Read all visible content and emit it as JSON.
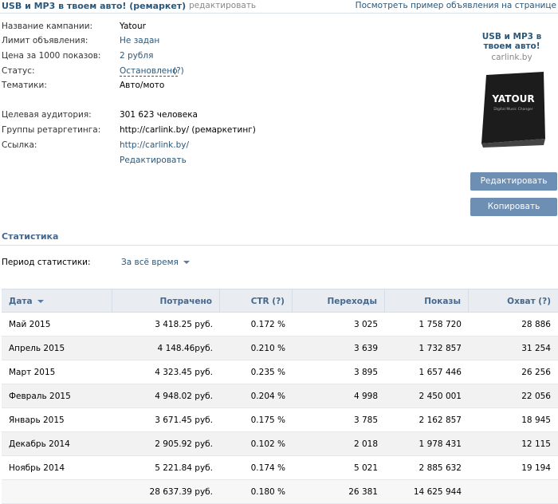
{
  "header": {
    "title": "USB и MP3 в твоем авто! (ремаркет)",
    "edit_link": "редактировать",
    "preview_link": "Посмотреть пример объявления на странице"
  },
  "info": {
    "rows": [
      {
        "label": "Название кампании:",
        "value": "Yatour"
      },
      {
        "label": "Лимит объявления:",
        "value": "Не задан"
      },
      {
        "label": "Цена за 1000 показов:",
        "value": "2 рубля"
      },
      {
        "label": "Статус:",
        "value": "Остановлено",
        "help": "(?)"
      },
      {
        "label": "Тематики:",
        "value": "Авто/мото"
      },
      {
        "label": "Целевая аудитория:",
        "value": "301 623 человека"
      },
      {
        "label": "Группы ретаргетинга:",
        "value": "http://carlink.by/ (ремаркетинг)"
      },
      {
        "label": "Ссылка:",
        "value": "http://carlink.by/"
      }
    ],
    "edit_link": "Редактировать"
  },
  "ad": {
    "title": "USB и MP3 в твоем авто!",
    "domain": "carlink.by",
    "image_brand": "YATOUR",
    "image_caption": "Digital Music Changer"
  },
  "buttons": {
    "edit": "Редактировать",
    "copy": "Копировать"
  },
  "stats": {
    "title": "Статистика",
    "period_label": "Период статистики:",
    "period_value": "За всё время"
  },
  "table": {
    "columns": [
      "Дата",
      "Потрачено",
      "CTR (?)",
      "Переходы",
      "Показы",
      "Охват (?)"
    ],
    "rows": [
      [
        "Май 2015",
        "3 418.25 руб.",
        "0.172 %",
        "3 025",
        "1 758 720",
        "28 886"
      ],
      [
        "Апрель 2015",
        "4 148.46руб.",
        "0.210 %",
        "3 639",
        "1 732 857",
        "31 254"
      ],
      [
        "Март 2015",
        "4 323.45 руб.",
        "0.235 %",
        "3 895",
        "1 657 446",
        "26 256"
      ],
      [
        "Февраль 2015",
        "4 948.02 руб.",
        "0.204 %",
        "4 998",
        "2 450 001",
        "22 056"
      ],
      [
        "Январь 2015",
        "3 671.45 руб.",
        "0.175 %",
        "3 785",
        "2 162 857",
        "18 945"
      ],
      [
        "Декабрь 2014",
        "2 905.92 руб.",
        "0.102 %",
        "2 018",
        "1 978 431",
        "12 115"
      ],
      [
        "Ноябрь 2014",
        "5 221.84 руб.",
        "0.174 %",
        "5 021",
        "2 885 632",
        "19 194"
      ]
    ],
    "total": [
      "",
      "28 637.39 руб.",
      "0.180 %",
      "26 381",
      "14 625 944",
      ""
    ]
  }
}
